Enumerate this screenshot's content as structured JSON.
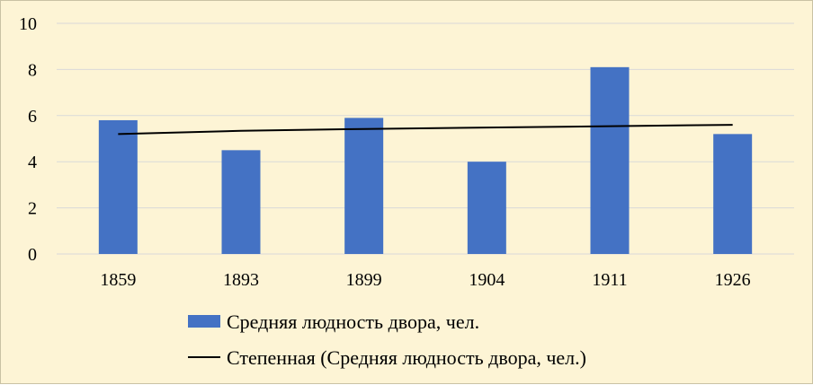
{
  "chart_data": {
    "type": "bar",
    "categories": [
      "1859",
      "1893",
      "1899",
      "1904",
      "1911",
      "1926"
    ],
    "series": [
      {
        "name": "Средняя людность двора, чел.",
        "type": "bar",
        "values": [
          5.8,
          4.5,
          5.9,
          4.0,
          8.1,
          5.2
        ],
        "color": "#4472c4"
      },
      {
        "name": "Степенная (Средняя людность двора, чел.)",
        "type": "trendline",
        "values": [
          5.2,
          5.34,
          5.42,
          5.48,
          5.54,
          5.6
        ],
        "color": "#000000"
      }
    ],
    "yticks": [
      "0",
      "2",
      "4",
      "6",
      "8",
      "10"
    ],
    "ylim": [
      0,
      10
    ],
    "grid": true,
    "legend_position": "bottom",
    "colors": {
      "background": "#fdf4d5",
      "gridline": "#d9d9d9",
      "bar": "#4472c4",
      "trend": "#000000"
    }
  }
}
